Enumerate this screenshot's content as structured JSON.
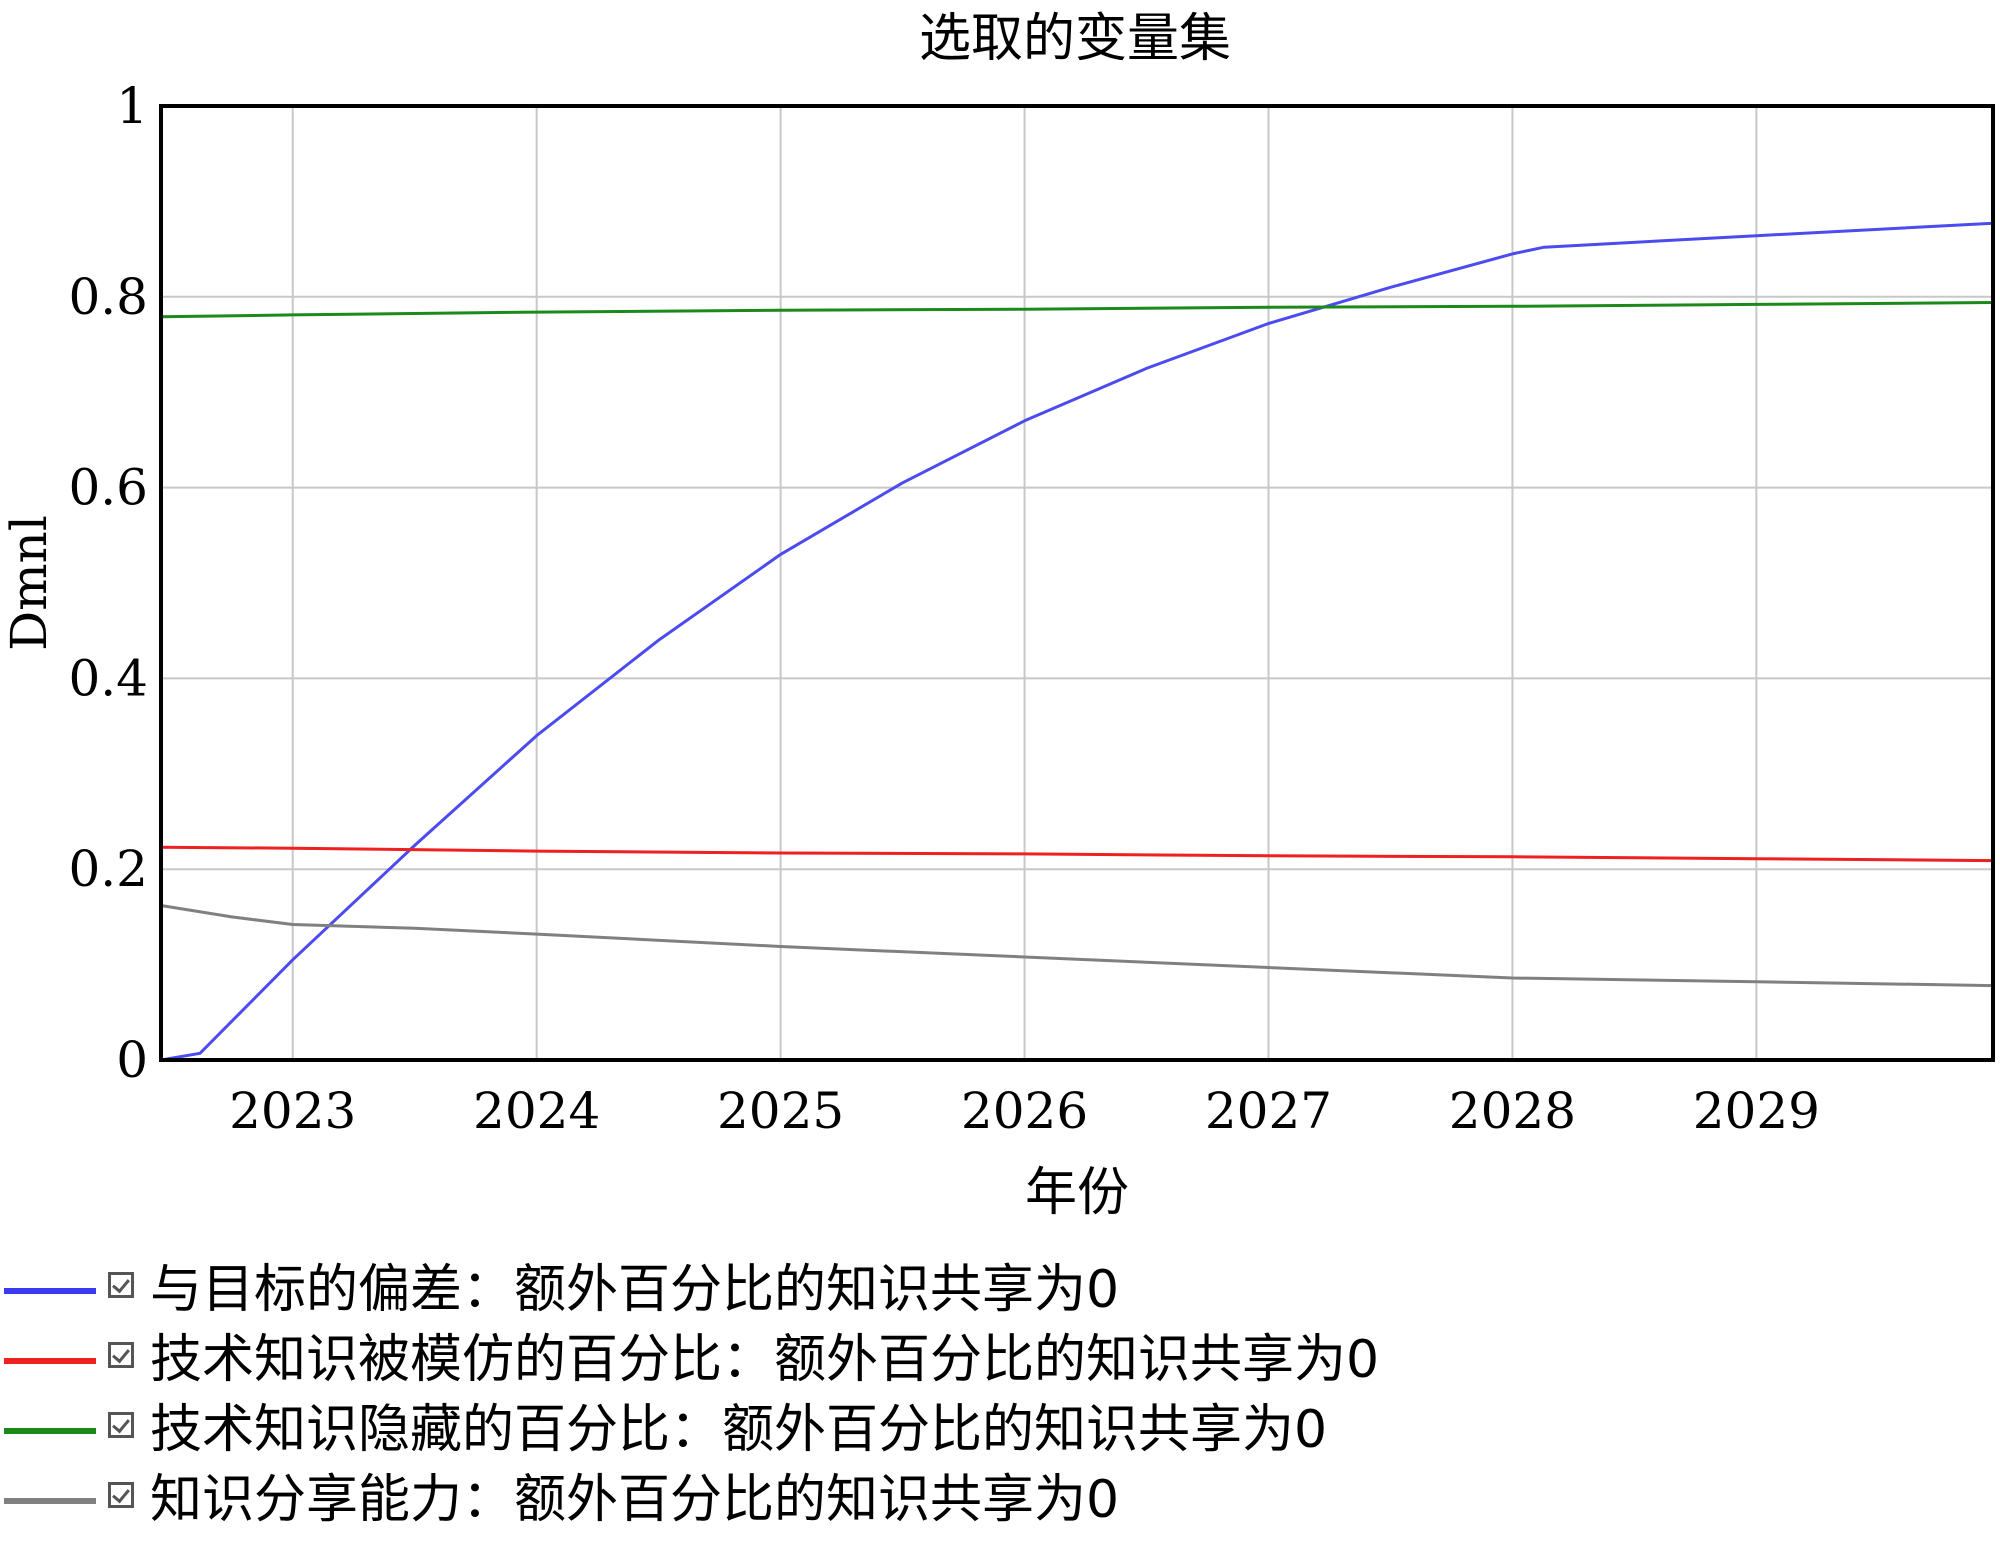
{
  "chart_data": {
    "type": "line",
    "title": "选取的变量集",
    "xlabel": "年份",
    "ylabel": "Dmnl",
    "xlim": [
      2022.46,
      2029.97
    ],
    "ylim": [
      0,
      1
    ],
    "x_ticks": [
      "2023",
      "2024",
      "2025",
      "2026",
      "2027",
      "2028",
      "2029"
    ],
    "y_ticks": [
      "0",
      "0.2",
      "0.4",
      "0.6",
      "0.8",
      "1"
    ],
    "grid": true,
    "legend_position": "bottom",
    "series": [
      {
        "name": "与目标的偏差：额外百分比的知识共享为0",
        "color": "#4b4bf0",
        "x": [
          2022.46,
          2022.62,
          2023.0,
          2023.5,
          2024.0,
          2024.5,
          2025.0,
          2025.5,
          2026.0,
          2026.5,
          2027.0,
          2027.5,
          2028.0,
          2028.13,
          2029.0,
          2029.97
        ],
        "y": [
          0.0,
          0.007,
          0.105,
          0.225,
          0.34,
          0.44,
          0.53,
          0.605,
          0.67,
          0.725,
          0.772,
          0.81,
          0.845,
          0.852,
          0.864,
          0.877
        ]
      },
      {
        "name": "技术知识被模仿的百分比：额外百分比的知识共享为0",
        "color": "#ee2020",
        "x": [
          2022.46,
          2023.0,
          2024.0,
          2025.0,
          2026.0,
          2027.0,
          2028.0,
          2029.0,
          2029.97
        ],
        "y": [
          0.223,
          0.222,
          0.219,
          0.217,
          0.216,
          0.214,
          0.213,
          0.211,
          0.209
        ]
      },
      {
        "name": "技术知识隐藏的百分比：额外百分比的知识共享为0",
        "color": "#1b8a1b",
        "x": [
          2022.46,
          2023.0,
          2024.0,
          2025.0,
          2026.0,
          2027.0,
          2028.0,
          2029.0,
          2029.97
        ],
        "y": [
          0.779,
          0.781,
          0.784,
          0.786,
          0.787,
          0.789,
          0.79,
          0.792,
          0.794
        ]
      },
      {
        "name": "知识分享能力：额外百分比的知识共享为0",
        "color": "#808080",
        "x": [
          2022.46,
          2022.75,
          2023.0,
          2023.5,
          2024.0,
          2025.0,
          2026.0,
          2027.0,
          2028.0,
          2029.0,
          2029.97
        ],
        "y": [
          0.162,
          0.15,
          0.142,
          0.138,
          0.132,
          0.119,
          0.108,
          0.097,
          0.086,
          0.082,
          0.078
        ]
      }
    ]
  }
}
